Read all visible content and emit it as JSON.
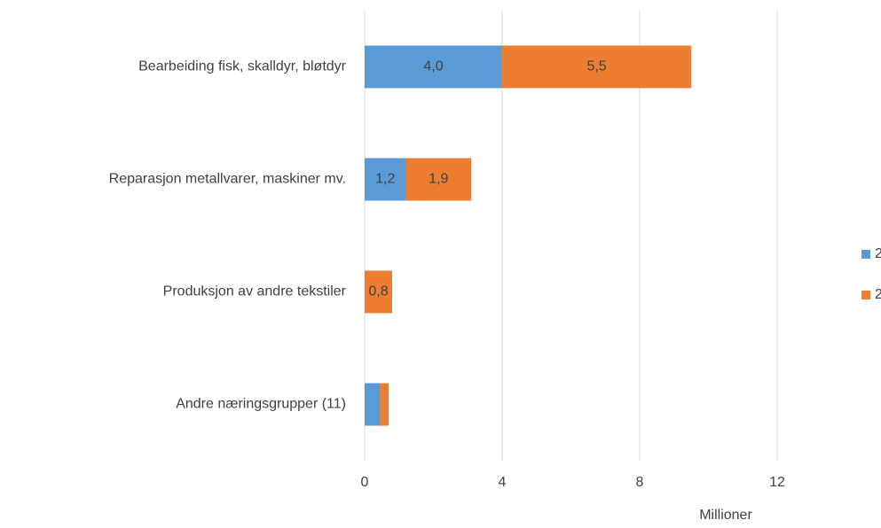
{
  "chart_data": {
    "type": "stacked_barh",
    "categories": [
      "Bearbeiding fisk, skalldyr, bløtdyr",
      "Reparasjon metallvarer, maskiner mv.",
      "Produksjon av andre tekstiler",
      "Andre næringsgrupper (11)"
    ],
    "series": [
      {
        "name": "2",
        "color": "#5b9bd5",
        "values": [
          4.0,
          1.2,
          0,
          0.45
        ],
        "value_labels": [
          "4,0",
          "1,2",
          null,
          null
        ]
      },
      {
        "name": "2",
        "color": "#ed7d31",
        "values": [
          5.5,
          1.9,
          0.8,
          0.25
        ],
        "value_labels": [
          "5,5",
          "1,9",
          "0,8",
          null
        ]
      }
    ],
    "xlim": [
      0,
      12
    ],
    "xticks": [
      0,
      4,
      8,
      12
    ],
    "xlabel": "Millioner",
    "grid": true,
    "legend": "right"
  }
}
